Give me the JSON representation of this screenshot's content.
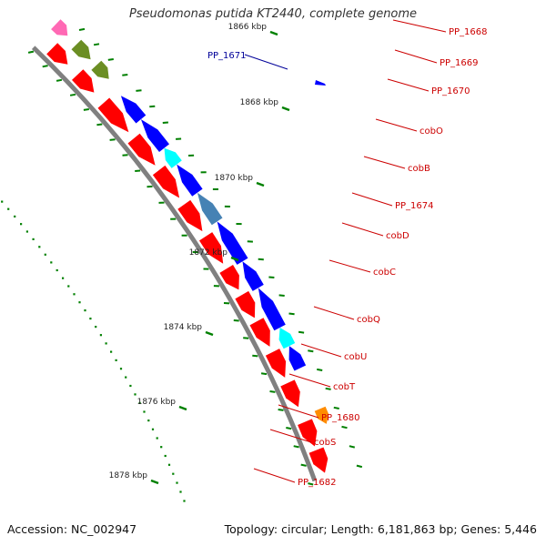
{
  "title": "Pseudomonas putida KT2440, complete genome",
  "footer": {
    "accession": "Accession: NC_002947",
    "summary": "Topology: circular; Length: 6,181,863 bp; Genes: 5,446"
  },
  "colors": {
    "backbone": "#808080",
    "forward_gene": "#ff0000",
    "reverse_gene": "#0000ff",
    "tick": "#008000",
    "gene_label": "#cc0000",
    "highlight_label": "#000099",
    "olive_gene": "#6b8e23",
    "cyan_gene": "#00ffff",
    "steelblue_gene": "#4682b4",
    "orange_gene": "#ff8c00",
    "pink_gene": "#ff69b4"
  },
  "axis": {
    "unit": "kbp",
    "tick_labels": [
      "1866 kbp",
      "1868 kbp",
      "1870 kbp",
      "1872 kbp",
      "1874 kbp",
      "1876 kbp",
      "1878 kbp"
    ]
  },
  "highlight": {
    "label": "PP_1671"
  },
  "genes": [
    {
      "name": "PP_1668",
      "strand": "+",
      "color": "pink"
    },
    {
      "name": "PP_1669",
      "strand": "+",
      "color": "olive"
    },
    {
      "name": "PP_1670",
      "strand": "+",
      "color": "olive"
    },
    {
      "name": "PP_1671",
      "strand": "-",
      "color": "blue"
    },
    {
      "name": "cobO",
      "strand": "-",
      "color": "blue"
    },
    {
      "name": "cobB",
      "strand": "-",
      "color": "blue"
    },
    {
      "name": "PP_1674",
      "strand": "-",
      "color": "cyan"
    },
    {
      "name": "cobD",
      "strand": "-",
      "color": "blue"
    },
    {
      "name": "cobC",
      "strand": "-",
      "color": "steelblue"
    },
    {
      "name": "cobQ",
      "strand": "-",
      "color": "blue"
    },
    {
      "name": "cobU",
      "strand": "-",
      "color": "blue"
    },
    {
      "name": "cobT",
      "strand": "-",
      "color": "blue"
    },
    {
      "name": "PP_1680",
      "strand": "-",
      "color": "cyan"
    },
    {
      "name": "cobS",
      "strand": "-",
      "color": "blue"
    },
    {
      "name": "PP_1682",
      "strand": "+",
      "color": "orange"
    }
  ]
}
